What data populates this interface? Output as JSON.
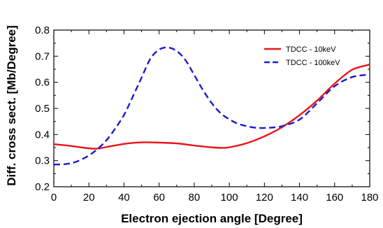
{
  "chart_data": {
    "type": "line",
    "xlabel": "Electron ejection angle [Degree]",
    "ylabel": "Diff. cross sect. [Mb/Degree]",
    "xlim": [
      0,
      180
    ],
    "ylim": [
      0.2,
      0.8
    ],
    "xticks": [
      0,
      20,
      40,
      60,
      80,
      100,
      120,
      140,
      160,
      180
    ],
    "yticks": [
      0.2,
      0.3,
      0.4,
      0.5,
      0.6,
      0.7,
      0.8
    ],
    "grid": false,
    "legend_position": "top-right",
    "series": [
      {
        "name": "TDCC - 10keV",
        "color": "#e8141b",
        "style": "solid",
        "x": [
          0,
          10,
          20,
          25,
          30,
          40,
          50,
          60,
          70,
          80,
          90,
          95,
          100,
          110,
          120,
          130,
          140,
          150,
          160,
          170,
          180
        ],
        "y": [
          0.363,
          0.356,
          0.347,
          0.346,
          0.352,
          0.364,
          0.37,
          0.369,
          0.366,
          0.358,
          0.351,
          0.349,
          0.351,
          0.367,
          0.393,
          0.428,
          0.474,
          0.53,
          0.595,
          0.648,
          0.668
        ]
      },
      {
        "name": "TDCC - 100keV",
        "color": "#1a1ad1",
        "style": "dashed",
        "x": [
          0,
          5,
          10,
          15,
          20,
          25,
          30,
          35,
          40,
          45,
          50,
          55,
          60,
          65,
          70,
          75,
          80,
          85,
          90,
          95,
          100,
          105,
          110,
          115,
          120,
          125,
          130,
          140,
          150,
          160,
          170,
          180
        ],
        "y": [
          0.285,
          0.286,
          0.29,
          0.302,
          0.32,
          0.345,
          0.378,
          0.423,
          0.475,
          0.545,
          0.618,
          0.69,
          0.725,
          0.733,
          0.72,
          0.685,
          0.628,
          0.57,
          0.52,
          0.482,
          0.458,
          0.441,
          0.432,
          0.426,
          0.425,
          0.427,
          0.432,
          0.457,
          0.52,
          0.585,
          0.62,
          0.63
        ]
      }
    ]
  }
}
